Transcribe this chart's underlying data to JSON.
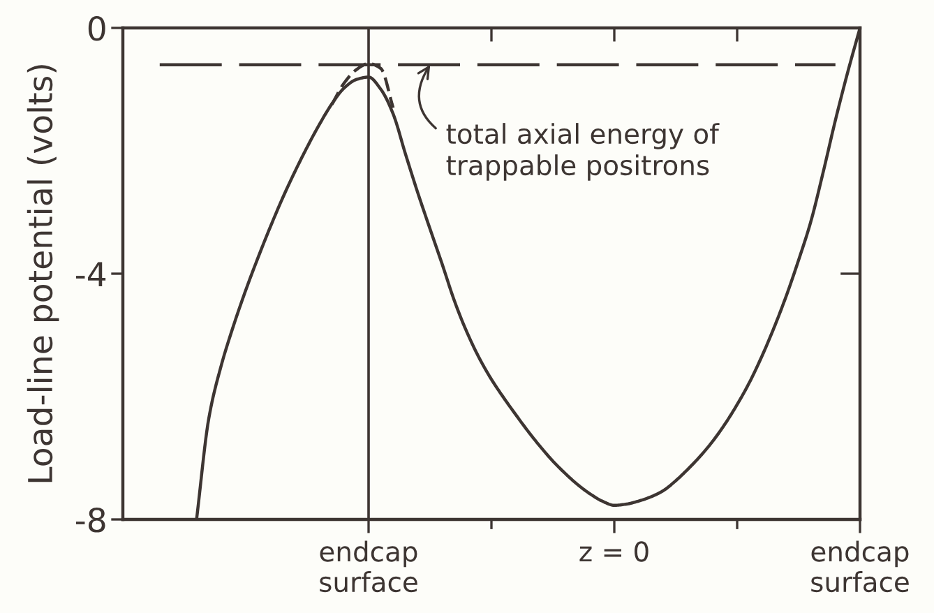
{
  "chart_data": {
    "type": "line",
    "ylabel": "Load-line potential (volts)",
    "categories": [
      null,
      null,
      null,
      null,
      null,
      null,
      null,
      null,
      null,
      null,
      null,
      null,
      null,
      null,
      null,
      null,
      null,
      null,
      null,
      null,
      "endcap\nsurface",
      null,
      null,
      null,
      null,
      null,
      null,
      null,
      null,
      null,
      null,
      null,
      null,
      null,
      null,
      null,
      null,
      null,
      null,
      null,
      "z = 0",
      null,
      null,
      null,
      null,
      null,
      null,
      null,
      null,
      null,
      null,
      null,
      null,
      null,
      null,
      null,
      null,
      null,
      null,
      null,
      "endcap\nsurface"
    ],
    "ylim": [
      -8,
      0
    ],
    "yticks": [
      -8,
      -4,
      0
    ],
    "ref_lines": [
      {
        "axis": "x",
        "value": "endcap\nsurface",
        "color": "#3d3532"
      }
    ],
    "series": [
      {
        "color": "#3d3532",
        "values": [
          null,
          null,
          null,
          null,
          null,
          null,
          -8,
          -6.35,
          -5.5,
          -4.85,
          -4.27,
          -3.74,
          -3.24,
          -2.77,
          -2.34,
          -1.94,
          -1.57,
          -1.24,
          -0.98,
          -0.84,
          -0.8,
          -1.0,
          -1.4,
          -2.05,
          -2.68,
          -3.27,
          -3.85,
          -4.45,
          -4.95,
          -5.37,
          -5.72,
          -6.02,
          -6.3,
          -6.57,
          -6.82,
          -7.05,
          -7.25,
          -7.43,
          -7.58,
          -7.7,
          -7.77,
          -7.75,
          -7.7,
          -7.63,
          -7.53,
          -7.37,
          -7.18,
          -6.97,
          -6.73,
          -6.45,
          -6.13,
          -5.77,
          -5.35,
          -4.88,
          -4.36,
          -3.78,
          -3.15,
          -2.35,
          -1.5,
          -0.72,
          0
        ]
      },
      {
        "color": "#3d3532",
        "line_style": "dashed",
        "values": [
          null,
          null,
          null,
          null,
          null,
          null,
          null,
          null,
          null,
          null,
          null,
          null,
          null,
          null,
          null,
          null,
          null,
          -1.25,
          -0.9,
          -0.68,
          -0.58,
          -0.66,
          -1.3,
          null,
          null,
          null,
          null,
          null,
          null,
          null,
          null,
          null,
          null,
          null,
          null,
          null,
          null,
          null,
          null,
          null,
          null,
          null,
          null,
          null,
          null,
          null,
          null,
          null,
          null,
          null,
          null,
          null,
          null,
          null,
          null,
          null,
          null,
          null,
          null,
          null,
          null
        ]
      },
      {
        "color": "#3d3532",
        "line_style": "dashed",
        "values": [
          null,
          null,
          null,
          -0.6,
          -0.6,
          -0.6,
          -0.6,
          -0.6,
          -0.6,
          -0.6,
          -0.6,
          -0.6,
          -0.6,
          -0.6,
          -0.6,
          -0.6,
          -0.6,
          -0.6,
          -0.6,
          -0.6,
          -0.6,
          -0.6,
          -0.6,
          -0.6,
          -0.6,
          -0.6,
          -0.6,
          -0.6,
          -0.6,
          -0.6,
          -0.6,
          -0.6,
          -0.6,
          -0.6,
          -0.6,
          -0.6,
          -0.6,
          -0.6,
          -0.6,
          -0.6,
          -0.6,
          -0.6,
          -0.6,
          -0.6,
          -0.6,
          -0.6,
          -0.6,
          -0.6,
          -0.6,
          -0.6,
          -0.6,
          -0.6,
          -0.6,
          -0.6,
          -0.6,
          -0.6,
          -0.6,
          -0.6,
          -0.6,
          null,
          null
        ]
      }
    ],
    "annotations": [
      {
        "text": "total axial energy of\ntrappable positrons",
        "y": -0.6
      }
    ]
  }
}
